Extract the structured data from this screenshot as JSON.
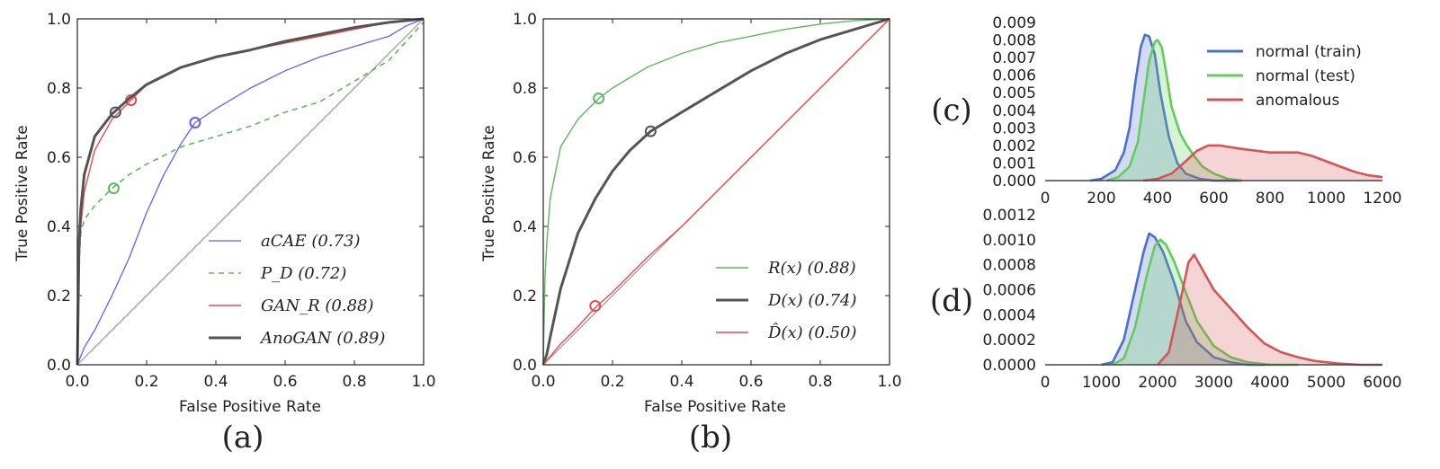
{
  "chart_data": [
    {
      "id": "a",
      "type": "line",
      "panel_label": "(a)",
      "xlabel": "False Positive Rate",
      "ylabel": "True Positive Rate",
      "xlim": [
        0,
        1
      ],
      "ylim": [
        0,
        1
      ],
      "xticks": [
        "0.0",
        "0.2",
        "0.4",
        "0.6",
        "0.8",
        "1.0"
      ],
      "yticks": [
        "0.0",
        "0.2",
        "0.4",
        "0.6",
        "0.8",
        "1.0"
      ],
      "legend_position": "lower-right",
      "diagonal": true,
      "series": [
        {
          "name": "aCAE (0.73)",
          "color": "#6b5cf2",
          "width": 1.3,
          "dash": "",
          "x": [
            0,
            0.02,
            0.05,
            0.1,
            0.15,
            0.2,
            0.25,
            0.3,
            0.34,
            0.4,
            0.5,
            0.6,
            0.7,
            0.8,
            0.9,
            0.95,
            1.0
          ],
          "y": [
            0,
            0.05,
            0.1,
            0.2,
            0.31,
            0.44,
            0.55,
            0.64,
            0.7,
            0.74,
            0.8,
            0.85,
            0.89,
            0.92,
            0.95,
            0.98,
            1.0
          ],
          "marker": [
            0.34,
            0.7
          ]
        },
        {
          "name": "P_D (0.72)",
          "color": "#5cb85c",
          "width": 1.6,
          "dash": "6,5",
          "x": [
            0,
            0.005,
            0.01,
            0.02,
            0.05,
            0.1,
            0.15,
            0.2,
            0.3,
            0.4,
            0.5,
            0.6,
            0.7,
            0.8,
            0.9,
            1.0
          ],
          "y": [
            0,
            0.3,
            0.38,
            0.42,
            0.46,
            0.51,
            0.55,
            0.58,
            0.63,
            0.66,
            0.69,
            0.73,
            0.76,
            0.82,
            0.88,
            0.99
          ],
          "marker": [
            0.105,
            0.51
          ]
        },
        {
          "name": "GAN_R (0.88)",
          "color": "#e84a4a",
          "width": 1.4,
          "dash": "",
          "x": [
            0,
            0.005,
            0.01,
            0.02,
            0.05,
            0.1,
            0.15,
            0.2,
            0.3,
            0.4,
            0.5,
            0.6,
            0.7,
            0.8,
            0.9,
            1.0
          ],
          "y": [
            0,
            0.3,
            0.4,
            0.5,
            0.62,
            0.71,
            0.76,
            0.81,
            0.86,
            0.89,
            0.91,
            0.93,
            0.95,
            0.97,
            0.99,
            1.0
          ],
          "marker": [
            0.155,
            0.765
          ]
        },
        {
          "name": "AnoGAN (0.89)",
          "color": "#555555",
          "width": 3,
          "dash": "",
          "x": [
            0,
            0.005,
            0.01,
            0.02,
            0.05,
            0.1,
            0.15,
            0.2,
            0.3,
            0.4,
            0.5,
            0.6,
            0.7,
            0.8,
            0.9,
            1.0
          ],
          "y": [
            0,
            0.35,
            0.45,
            0.55,
            0.66,
            0.725,
            0.77,
            0.81,
            0.86,
            0.89,
            0.91,
            0.935,
            0.955,
            0.975,
            0.99,
            1.0
          ],
          "marker": [
            0.11,
            0.73
          ]
        }
      ]
    },
    {
      "id": "b",
      "type": "line",
      "panel_label": "(b)",
      "xlabel": "False Positive Rate",
      "ylabel": "True Positive Rate",
      "xlim": [
        0,
        1
      ],
      "ylim": [
        0,
        1
      ],
      "xticks": [
        "0.0",
        "0.2",
        "0.4",
        "0.6",
        "0.8",
        "1.0"
      ],
      "yticks": [
        "0.0",
        "0.2",
        "0.4",
        "0.6",
        "0.8",
        "1.0"
      ],
      "legend_position": "lower-right",
      "diagonal": true,
      "series": [
        {
          "name": "R(x) (0.88)",
          "color": "#5cb85c",
          "width": 1.4,
          "dash": "",
          "x": [
            0,
            0.005,
            0.01,
            0.02,
            0.05,
            0.1,
            0.16,
            0.2,
            0.3,
            0.4,
            0.5,
            0.6,
            0.7,
            0.8,
            0.9,
            1.0
          ],
          "y": [
            0,
            0.25,
            0.35,
            0.48,
            0.63,
            0.71,
            0.77,
            0.8,
            0.86,
            0.9,
            0.93,
            0.95,
            0.97,
            0.985,
            0.995,
            1.0
          ],
          "marker": [
            0.16,
            0.77
          ]
        },
        {
          "name": "D(x) (0.74)",
          "color": "#555555",
          "width": 3,
          "dash": "",
          "x": [
            0,
            0.01,
            0.02,
            0.05,
            0.1,
            0.15,
            0.2,
            0.25,
            0.31,
            0.4,
            0.5,
            0.6,
            0.7,
            0.8,
            0.9,
            1.0
          ],
          "y": [
            0,
            0.03,
            0.08,
            0.22,
            0.38,
            0.48,
            0.56,
            0.62,
            0.675,
            0.73,
            0.79,
            0.85,
            0.9,
            0.94,
            0.97,
            1.0
          ],
          "marker": [
            0.31,
            0.675
          ]
        },
        {
          "name": "D̂(x) (0.50)",
          "color": "#e84a4a",
          "width": 1.4,
          "dash": "",
          "x": [
            0,
            0.05,
            0.1,
            0.15,
            0.2,
            0.3,
            0.4,
            0.5,
            0.6,
            0.7,
            0.8,
            0.9,
            1.0
          ],
          "y": [
            0,
            0.06,
            0.11,
            0.165,
            0.21,
            0.31,
            0.4,
            0.5,
            0.6,
            0.7,
            0.8,
            0.9,
            1.0
          ],
          "marker": [
            0.15,
            0.17
          ]
        }
      ]
    },
    {
      "id": "c",
      "type": "area",
      "panel_label": "(c)",
      "xlim": [
        0,
        1200
      ],
      "ylim": [
        0,
        0.009
      ],
      "xticks": [
        "0",
        "200",
        "400",
        "600",
        "800",
        "1000",
        "1200"
      ],
      "yticks": [
        "0.000",
        "0.001",
        "0.002",
        "0.003",
        "0.004",
        "0.005",
        "0.006",
        "0.007",
        "0.008",
        "0.009"
      ],
      "legend_position": "upper-right",
      "series": [
        {
          "name": "normal (train)",
          "color": "#4a6fd1",
          "fill": "rgba(74,111,209,0.25)",
          "x": [
            160,
            200,
            250,
            280,
            300,
            320,
            340,
            355,
            370,
            390,
            410,
            440,
            470,
            500,
            550,
            600,
            700
          ],
          "y": [
            0,
            0.0001,
            0.0006,
            0.0016,
            0.003,
            0.0055,
            0.0076,
            0.0083,
            0.0082,
            0.0072,
            0.005,
            0.0025,
            0.001,
            0.0004,
            0.0001,
            0,
            0
          ]
        },
        {
          "name": "normal (test)",
          "color": "#63cc5c",
          "fill": "rgba(99,204,92,0.25)",
          "x": [
            220,
            260,
            300,
            330,
            350,
            370,
            390,
            400,
            415,
            430,
            450,
            480,
            500,
            530,
            560,
            600,
            650,
            700
          ],
          "y": [
            0,
            0.0002,
            0.0008,
            0.0022,
            0.0045,
            0.0068,
            0.0079,
            0.008,
            0.0076,
            0.0062,
            0.0042,
            0.0027,
            0.0021,
            0.0014,
            0.0008,
            0.0004,
            0.0001,
            0
          ]
        },
        {
          "name": "anomalous",
          "color": "#d45555",
          "fill": "rgba(212,85,85,0.25)",
          "x": [
            350,
            400,
            450,
            500,
            540,
            580,
            620,
            700,
            800,
            900,
            950,
            1000,
            1050,
            1100,
            1150,
            1200
          ],
          "y": [
            0,
            0.0001,
            0.0004,
            0.0011,
            0.0017,
            0.002,
            0.002,
            0.0018,
            0.0016,
            0.0016,
            0.0014,
            0.0011,
            0.0008,
            0.0005,
            0.0003,
            0.0002
          ]
        }
      ]
    },
    {
      "id": "d",
      "type": "area",
      "panel_label": "(d)",
      "xlim": [
        0,
        6000
      ],
      "ylim": [
        0,
        0.0012
      ],
      "xticks": [
        "0",
        "1000",
        "2000",
        "3000",
        "4000",
        "5000",
        "6000"
      ],
      "yticks": [
        "0.0000",
        "0.0002",
        "0.0004",
        "0.0006",
        "0.0008",
        "0.0010",
        "0.0012"
      ],
      "series": [
        {
          "name": "normal (train)",
          "color": "#4a6fd1",
          "fill": "rgba(74,111,209,0.25)",
          "x": [
            1000,
            1200,
            1400,
            1600,
            1750,
            1850,
            1950,
            2100,
            2300,
            2500,
            2700,
            3000,
            3300,
            3600,
            4000
          ],
          "y": [
            0,
            2e-05,
            0.0002,
            0.0006,
            0.0009,
            0.00105,
            0.00102,
            0.0009,
            0.00065,
            0.00035,
            0.00018,
            6e-05,
            2e-05,
            0,
            0
          ]
        },
        {
          "name": "normal (test)",
          "color": "#63cc5c",
          "fill": "rgba(99,204,92,0.25)",
          "x": [
            1200,
            1400,
            1600,
            1800,
            1950,
            2050,
            2150,
            2300,
            2500,
            2700,
            3000,
            3300,
            3600,
            4000,
            4500
          ],
          "y": [
            0,
            5e-05,
            0.0003,
            0.0007,
            0.00095,
            0.001,
            0.00096,
            0.00082,
            0.00058,
            0.00035,
            0.00015,
            6e-05,
            2e-05,
            0,
            0
          ]
        },
        {
          "name": "anomalous",
          "color": "#d45555",
          "fill": "rgba(212,85,85,0.25)",
          "x": [
            2000,
            2200,
            2400,
            2550,
            2650,
            2750,
            3000,
            3300,
            3600,
            3900,
            4200,
            4500,
            4800,
            5200,
            5600,
            6000
          ],
          "y": [
            0,
            0.0001,
            0.0005,
            0.00082,
            0.00088,
            0.0008,
            0.0006,
            0.00045,
            0.0003,
            0.00017,
            0.0001,
            6e-05,
            3e-05,
            1e-05,
            0,
            0
          ]
        }
      ]
    }
  ],
  "colors": {
    "diagonal": "#999999",
    "axis": "#222222"
  }
}
